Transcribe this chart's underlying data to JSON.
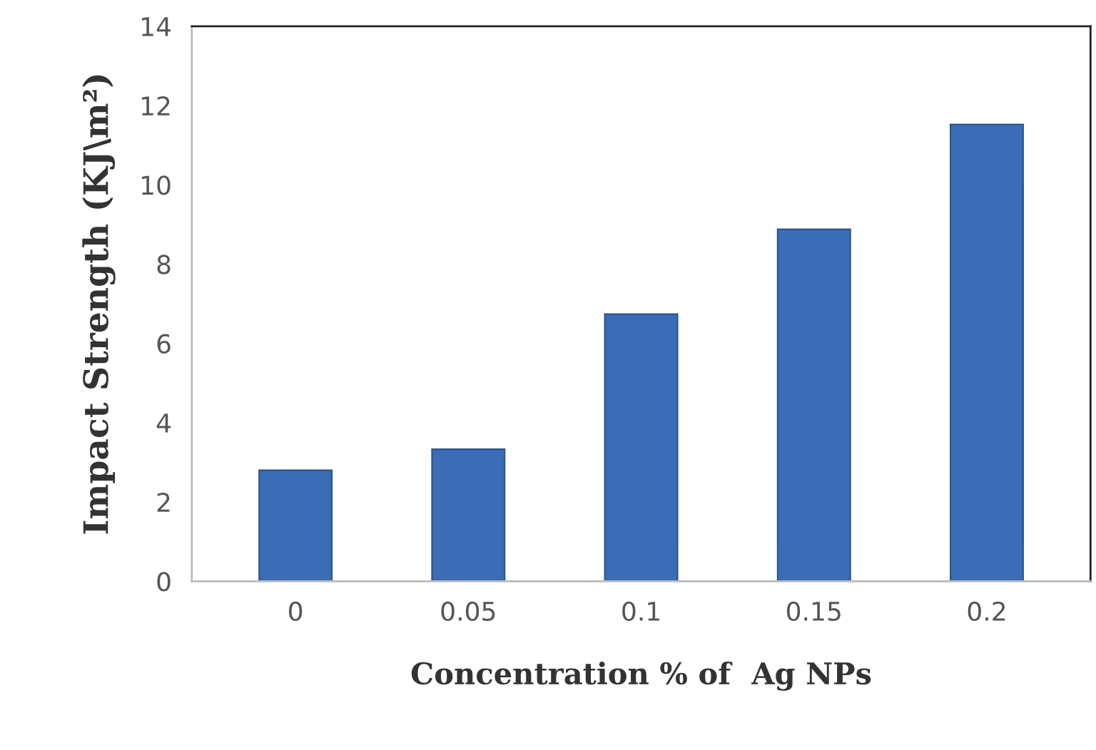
{
  "chart_data": {
    "type": "bar",
    "xlabel": "Concentration % of  Ag NPs",
    "ylabel": "Impact Strength (KJ\\m²)",
    "categories": [
      "0",
      "0.05",
      "0.1",
      "0.15",
      "0.2"
    ],
    "values": [
      2.8,
      3.33,
      6.74,
      8.88,
      11.52
    ],
    "color": "#3a6db5",
    "ylim": [
      0,
      14
    ],
    "yticks": [
      0,
      2,
      4,
      6,
      8,
      10,
      12,
      14
    ],
    "grid": false,
    "legend": false
  }
}
